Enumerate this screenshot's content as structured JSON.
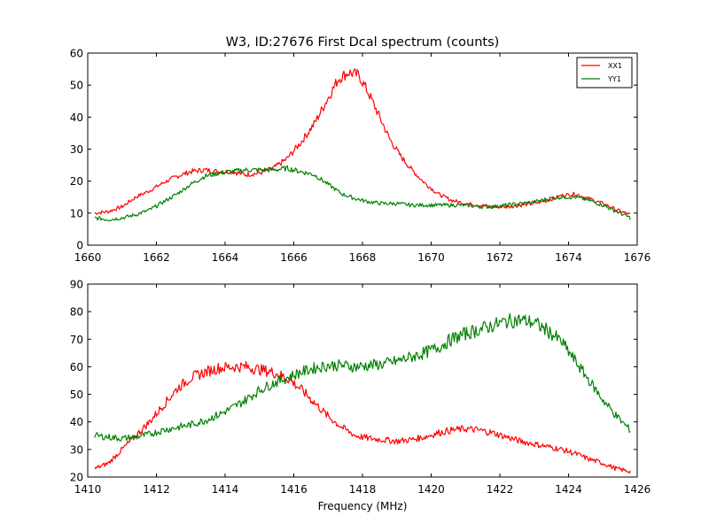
{
  "chart_data": [
    {
      "type": "line",
      "title": "W3, ID:27676 First Dcal spectrum (counts)",
      "xlabel": "",
      "ylabel": "",
      "xlim": [
        1660,
        1676
      ],
      "ylim": [
        0,
        60
      ],
      "xticks": [
        "1660",
        "1662",
        "1664",
        "1666",
        "1668",
        "1670",
        "1672",
        "1674",
        "1676"
      ],
      "yticks": [
        "0",
        "10",
        "20",
        "30",
        "40",
        "50",
        "60"
      ],
      "legend": {
        "position": "top-right",
        "entries": [
          "XX1",
          "YY1"
        ]
      },
      "grid": false,
      "series": [
        {
          "name": "XX1",
          "color": "#ff0000",
          "x": [
            1660.2,
            1660.6,
            1661.0,
            1661.4,
            1661.8,
            1662.2,
            1662.6,
            1663.0,
            1663.4,
            1663.8,
            1664.2,
            1664.6,
            1665.0,
            1665.4,
            1665.8,
            1666.2,
            1666.6,
            1667.0,
            1667.3,
            1667.6,
            1667.9,
            1668.2,
            1668.5,
            1668.8,
            1669.1,
            1669.4,
            1669.8,
            1670.2,
            1670.6,
            1671.0,
            1671.4,
            1671.8,
            1672.2,
            1672.6,
            1673.0,
            1673.4,
            1673.8,
            1674.2,
            1674.6,
            1675.0,
            1675.4,
            1675.8
          ],
          "values": [
            10,
            10.5,
            12,
            15,
            17,
            19.5,
            21.5,
            23,
            23.5,
            23,
            23,
            22,
            22.5,
            24,
            27,
            32,
            38,
            46,
            52,
            54,
            53,
            47,
            40,
            33,
            28,
            24,
            19.5,
            16,
            14,
            13,
            12.5,
            12,
            12,
            12.5,
            13,
            14,
            15.5,
            16,
            14.5,
            13,
            11,
            9.5
          ]
        },
        {
          "name": "YY1",
          "color": "#008000",
          "x": [
            1660.2,
            1660.6,
            1661.0,
            1661.4,
            1661.8,
            1662.2,
            1662.6,
            1663.0,
            1663.4,
            1663.8,
            1664.2,
            1664.6,
            1665.0,
            1665.4,
            1665.8,
            1666.2,
            1666.6,
            1667.0,
            1667.4,
            1667.8,
            1668.2,
            1668.6,
            1669.0,
            1669.4,
            1669.8,
            1670.2,
            1670.6,
            1671.0,
            1671.4,
            1671.8,
            1672.2,
            1672.6,
            1673.0,
            1673.4,
            1673.8,
            1674.2,
            1674.6,
            1675.0,
            1675.4,
            1675.8
          ],
          "values": [
            8.5,
            8,
            8.5,
            9.5,
            11,
            13.5,
            16,
            19,
            21.5,
            22.5,
            23,
            23.5,
            23.5,
            23.5,
            24,
            23,
            22,
            19,
            16,
            14.5,
            13.5,
            13,
            13,
            12.5,
            12.5,
            12.5,
            12.5,
            12.5,
            12,
            12,
            12.5,
            13,
            13.5,
            14.5,
            15,
            15,
            14,
            12.5,
            10.5,
            8.5
          ]
        }
      ]
    },
    {
      "type": "line",
      "title": "",
      "xlabel": "Frequency (MHz)",
      "ylabel": "",
      "xlim": [
        1410,
        1426
      ],
      "ylim": [
        20,
        90
      ],
      "xticks": [
        "1410",
        "1412",
        "1414",
        "1416",
        "1418",
        "1420",
        "1422",
        "1424",
        "1426"
      ],
      "yticks": [
        "20",
        "30",
        "40",
        "50",
        "60",
        "70",
        "80",
        "90"
      ],
      "grid": false,
      "series": [
        {
          "name": "XX1",
          "color": "#ff0000",
          "x": [
            1410.2,
            1410.6,
            1411.0,
            1411.4,
            1411.8,
            1412.2,
            1412.6,
            1413.0,
            1413.4,
            1413.8,
            1414.2,
            1414.6,
            1415.0,
            1415.4,
            1415.8,
            1416.2,
            1416.6,
            1417.0,
            1417.4,
            1417.8,
            1418.2,
            1418.6,
            1419.0,
            1419.4,
            1419.8,
            1420.2,
            1420.6,
            1421.0,
            1421.4,
            1421.8,
            1422.2,
            1422.6,
            1423.0,
            1423.4,
            1423.8,
            1424.2,
            1424.6,
            1425.0,
            1425.4,
            1425.8
          ],
          "values": [
            23,
            25,
            30,
            35,
            40,
            46,
            52,
            56,
            58,
            59.5,
            60,
            60,
            59,
            58,
            56,
            52,
            47,
            42,
            38,
            35,
            34,
            33.5,
            33,
            33.5,
            34.5,
            36,
            37,
            37.5,
            37,
            36,
            34.5,
            33,
            32,
            31,
            30,
            28.5,
            26.5,
            25,
            23,
            22
          ]
        },
        {
          "name": "YY1",
          "color": "#008000",
          "x": [
            1410.2,
            1410.6,
            1411.0,
            1411.4,
            1411.8,
            1412.2,
            1412.6,
            1413.0,
            1413.4,
            1413.8,
            1414.2,
            1414.6,
            1415.0,
            1415.4,
            1415.8,
            1416.2,
            1416.6,
            1417.0,
            1417.4,
            1417.8,
            1418.2,
            1418.6,
            1419.0,
            1419.4,
            1419.8,
            1420.2,
            1420.6,
            1421.0,
            1421.4,
            1421.8,
            1422.2,
            1422.6,
            1423.0,
            1423.4,
            1423.8,
            1424.2,
            1424.6,
            1425.0,
            1425.4,
            1425.8
          ],
          "values": [
            35,
            34.5,
            34,
            34.5,
            35.5,
            37,
            38,
            39,
            40.5,
            42.5,
            45,
            48,
            51.5,
            54,
            56,
            58,
            59.5,
            60.5,
            60.5,
            60,
            60.5,
            61,
            62,
            63.5,
            65,
            67,
            70,
            72,
            73.5,
            75,
            76.5,
            77,
            76,
            73,
            69,
            62,
            55,
            48,
            42,
            37
          ]
        }
      ]
    }
  ]
}
